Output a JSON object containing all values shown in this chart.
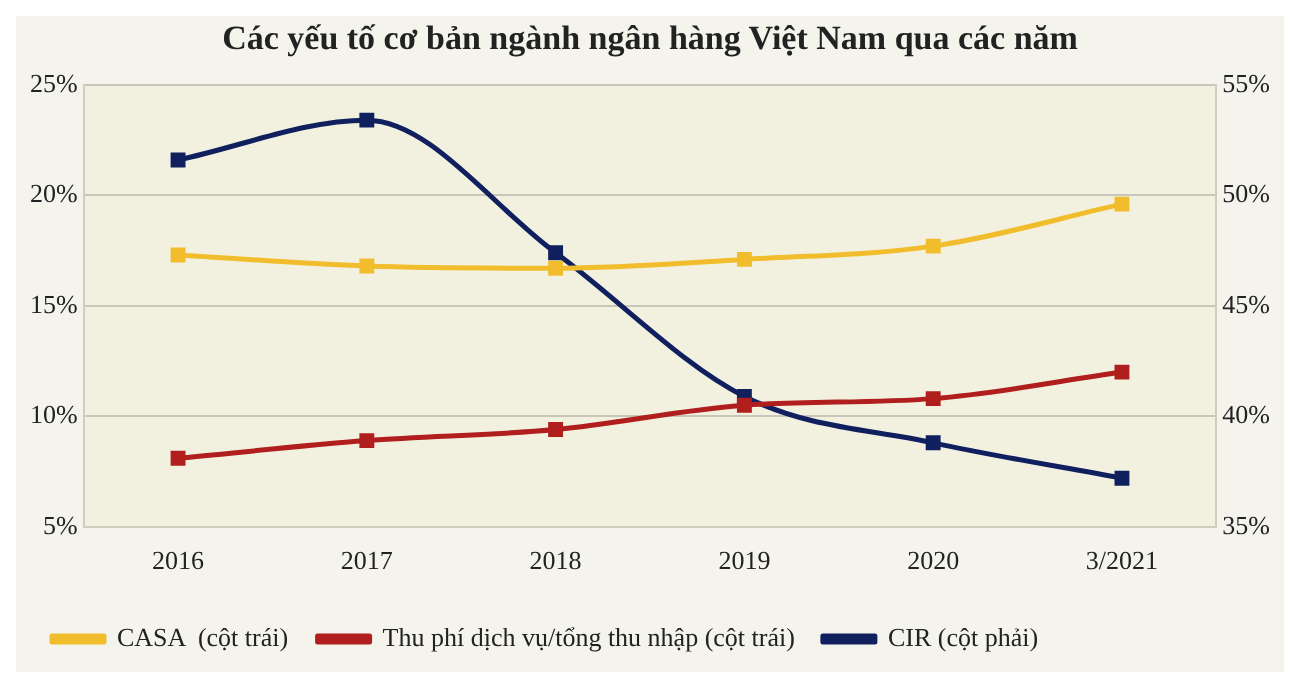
{
  "chart_data": {
    "type": "line",
    "title": "Các yếu tố cơ bản ngành ngân hàng Việt Nam qua các năm",
    "categories": [
      "2016",
      "2017",
      "2018",
      "2019",
      "2020",
      "3/2021"
    ],
    "series": [
      {
        "name": "CASA  (cột trái)",
        "color": "#f2bd2c",
        "values": [
          17.3,
          16.8,
          16.7,
          17.1,
          17.7,
          19.6
        ]
      },
      {
        "name": "Thu phí dịch vụ/tổng thu nhập (cột trái)",
        "color": "#b01e1e",
        "values": [
          8.1,
          8.9,
          9.4,
          10.5,
          10.8,
          12.0
        ]
      },
      {
        "name": "CIR (cột phải)",
        "color": "#10205e",
        "axis": "y2",
        "values": [
          51.6,
          53.4,
          47.4,
          40.9,
          38.8,
          37.2
        ]
      }
    ],
    "ylim": [
      5,
      25
    ],
    "yticks": [
      {
        "value": 5,
        "label": "5%"
      },
      {
        "value": 10,
        "label": "10%"
      },
      {
        "value": 15,
        "label": "15%"
      },
      {
        "value": 20,
        "label": "20%"
      },
      {
        "value": 25,
        "label": "25%"
      }
    ],
    "y2lim": [
      35,
      55
    ],
    "y2ticks": [
      {
        "value": 35,
        "label": "35%"
      },
      {
        "value": 40,
        "label": "40%"
      },
      {
        "value": 45,
        "label": "45%"
      },
      {
        "value": 50,
        "label": "50%"
      },
      {
        "value": 55,
        "label": "55%"
      }
    ],
    "grid": "y",
    "legend": "bottom",
    "marker": "square",
    "line_style": "solid"
  }
}
